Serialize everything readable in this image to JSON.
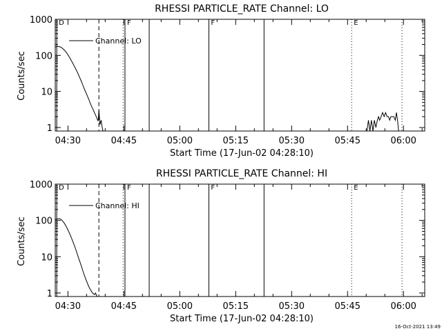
{
  "footer_timestamp": "16-Oct-2021 13:49",
  "colors": {
    "background": "#ffffff",
    "foreground": "#000000"
  },
  "chart_data": [
    {
      "type": "line",
      "title": "RHESSI PARTICLE_RATE Channel: LO",
      "xlabel": "Start Time (17-Jun-02 04:28:10)",
      "ylabel": "Counts/sec",
      "y_scale": "log",
      "ylim": [
        0.8,
        1000
      ],
      "xlim_minutes": [
        -3.4,
        95.7
      ],
      "x_ticks": [
        {
          "t": 0,
          "label": "04:30"
        },
        {
          "t": 15,
          "label": "04:45"
        },
        {
          "t": 30,
          "label": "05:00"
        },
        {
          "t": 45,
          "label": "05:15"
        },
        {
          "t": 60,
          "label": "05:30"
        },
        {
          "t": 75,
          "label": "05:45"
        },
        {
          "t": 90,
          "label": "06:00"
        }
      ],
      "y_ticks": [
        {
          "v": 1,
          "label": "1"
        },
        {
          "v": 10,
          "label": "10"
        },
        {
          "v": 100,
          "label": "100"
        },
        {
          "v": 1000,
          "label": "1000"
        }
      ],
      "legend": {
        "label": "Channel: LO",
        "position": "top-left"
      },
      "markers": [
        {
          "t": -3.0,
          "style": "solid",
          "label": "D"
        },
        {
          "t": 8.3,
          "style": "dashed",
          "label": ""
        },
        {
          "t": 14.8,
          "style": "dotted",
          "label": ""
        },
        {
          "t": 15.3,
          "style": "solid",
          "label": "F"
        },
        {
          "t": 21.8,
          "style": "solid",
          "label": ""
        },
        {
          "t": 37.8,
          "style": "solid",
          "label": "F"
        },
        {
          "t": 52.6,
          "style": "solid",
          "label": ""
        },
        {
          "t": 76.1,
          "style": "dotted",
          "label": "E"
        },
        {
          "t": 89.6,
          "style": "dotted",
          "label": ""
        }
      ],
      "series": [
        {
          "name": "Channel: LO",
          "segments": [
            {
              "x": [
                -3.4,
                -2.9,
                -2.4,
                -1.9,
                -1.4,
                -0.9,
                -0.4,
                0.1,
                0.6,
                1.1,
                1.6,
                2.1,
                2.6,
                3.1,
                3.6,
                4.1,
                4.6,
                5.1,
                5.6,
                6.1,
                6.6,
                7.1,
                7.6,
                8.1,
                8.3,
                8.6,
                8.9,
                9.2,
                9.4
              ],
              "y": [
                170,
                178,
                176,
                168,
                155,
                138,
                120,
                100,
                82,
                66,
                53,
                42,
                33,
                25,
                19,
                14,
                10.5,
                8,
                6,
                4.4,
                3.4,
                2.6,
                2.0,
                1.5,
                3.0,
                1.2,
                1.6,
                1.0,
                0.8
              ]
            },
            {
              "x": [
                80.2,
                80.6,
                81.0,
                81.4,
                81.8,
                82.2,
                82.6,
                83.0,
                83.3,
                83.6,
                84.0,
                84.4,
                84.8,
                85.2,
                85.6,
                86.0,
                86.3,
                86.6,
                87.0,
                87.4,
                87.8,
                88.1,
                88.4,
                88.7
              ],
              "y": [
                0.8,
                1.6,
                0.8,
                1.6,
                0.8,
                1.6,
                1.0,
                1.6,
                2.0,
                1.6,
                2.0,
                2.6,
                2.0,
                2.6,
                2.0,
                2.0,
                1.6,
                2.0,
                2.0,
                2.0,
                1.6,
                2.6,
                1.6,
                0.8
              ]
            }
          ]
        }
      ]
    },
    {
      "type": "line",
      "title": "RHESSI PARTICLE_RATE Channel: HI",
      "xlabel": "Start Time (17-Jun-02 04:28:10)",
      "ylabel": "Counts/sec",
      "y_scale": "log",
      "ylim": [
        0.8,
        1000
      ],
      "xlim_minutes": [
        -3.4,
        95.7
      ],
      "x_ticks": [
        {
          "t": 0,
          "label": "04:30"
        },
        {
          "t": 15,
          "label": "04:45"
        },
        {
          "t": 30,
          "label": "05:00"
        },
        {
          "t": 45,
          "label": "05:15"
        },
        {
          "t": 60,
          "label": "05:30"
        },
        {
          "t": 75,
          "label": "05:45"
        },
        {
          "t": 90,
          "label": "06:00"
        }
      ],
      "y_ticks": [
        {
          "v": 1,
          "label": "1"
        },
        {
          "v": 10,
          "label": "10"
        },
        {
          "v": 100,
          "label": "100"
        },
        {
          "v": 1000,
          "label": "1000"
        }
      ],
      "legend": {
        "label": "Channel: HI",
        "position": "top-left"
      },
      "markers": [
        {
          "t": -3.0,
          "style": "solid",
          "label": "D"
        },
        {
          "t": 8.3,
          "style": "dashed",
          "label": ""
        },
        {
          "t": 14.8,
          "style": "dotted",
          "label": ""
        },
        {
          "t": 15.3,
          "style": "solid",
          "label": "F"
        },
        {
          "t": 21.8,
          "style": "solid",
          "label": ""
        },
        {
          "t": 37.8,
          "style": "solid",
          "label": "F"
        },
        {
          "t": 52.6,
          "style": "solid",
          "label": ""
        },
        {
          "t": 76.1,
          "style": "dotted",
          "label": "E"
        },
        {
          "t": 89.6,
          "style": "dotted",
          "label": ""
        }
      ],
      "series": [
        {
          "name": "Channel: HI",
          "segments": [
            {
              "x": [
                -3.4,
                -2.9,
                -2.4,
                -1.9,
                -1.4,
                -0.9,
                -0.4,
                0.1,
                0.6,
                1.1,
                1.6,
                2.1,
                2.6,
                3.1,
                3.6,
                4.1,
                4.6,
                5.1,
                5.6,
                6.1,
                6.6,
                7.1,
                7.4,
                7.8
              ],
              "y": [
                104,
                110,
                112,
                108,
                96,
                82,
                66,
                52,
                40,
                30,
                22,
                16,
                11,
                7.8,
                5.5,
                3.8,
                2.7,
                2.0,
                1.5,
                1.2,
                1.0,
                0.9,
                1.0,
                0.8
              ]
            }
          ]
        }
      ]
    }
  ]
}
